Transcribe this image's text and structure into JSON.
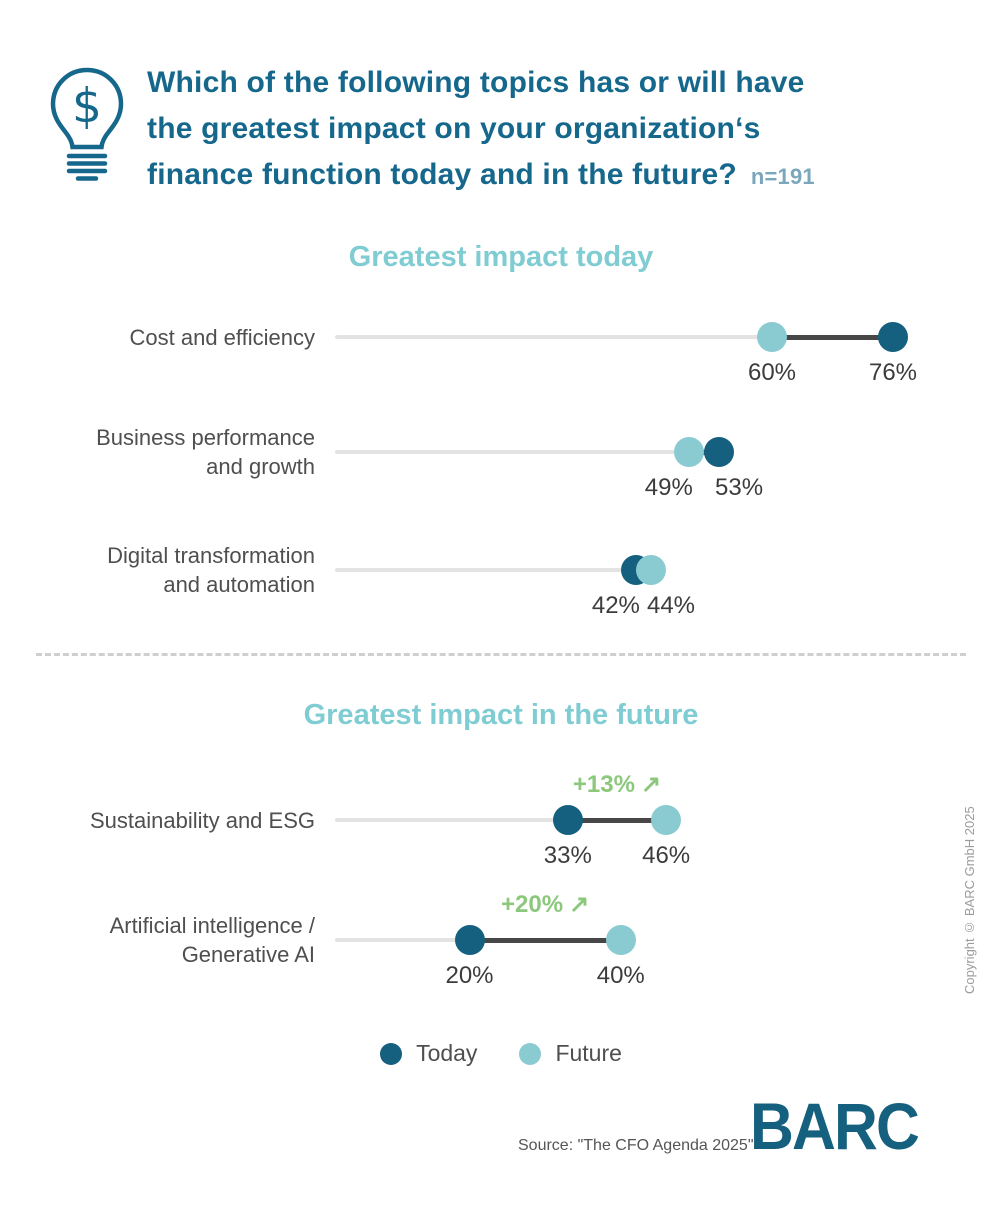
{
  "header": {
    "title_lines": [
      "Which of the following topics has or will have",
      "the greatest impact on your organization‘s",
      "finance function today and in the future?"
    ],
    "n_label": "n=191"
  },
  "chart_data": [
    {
      "type": "dumbbell",
      "title": "Greatest impact today",
      "axis_range": [
        0,
        90
      ],
      "unit": "%",
      "rows": [
        {
          "label_lines": [
            "Cost and efficiency"
          ],
          "today": 76,
          "future": 60
        },
        {
          "label_lines": [
            "Business performance",
            "and growth"
          ],
          "today": 53,
          "future": 49
        },
        {
          "label_lines": [
            "Digital transformation",
            "and automation"
          ],
          "today": 42,
          "future": 44
        }
      ]
    },
    {
      "type": "dumbbell",
      "title": "Greatest impact in the future",
      "axis_range": [
        0,
        90
      ],
      "unit": "%",
      "rows": [
        {
          "label_lines": [
            "Sustainability and ESG"
          ],
          "today": 33,
          "future": 46,
          "delta": "+13%"
        },
        {
          "label_lines": [
            "Artificial intelligence /",
            "Generative AI"
          ],
          "today": 20,
          "future": 40,
          "delta": "+20%"
        }
      ]
    }
  ],
  "legend": {
    "items": [
      {
        "key": "today",
        "label": "Today"
      },
      {
        "key": "future",
        "label": "Future"
      }
    ]
  },
  "icons": {
    "increase_arrow": "↗",
    "bulb_glyph": "$"
  },
  "footer": {
    "source": "Source: \"The CFO Agenda 2025\"",
    "logo_text": "BARC",
    "copyright": "Copyright © BARC GmbH 2025"
  },
  "colors": {
    "today": "#15607E",
    "future": "#8ACBD2",
    "heading": "#7FCCD3",
    "title": "#16678C",
    "n": "#7BA7BD",
    "green": "#8CC87C",
    "label": "#4F4F4F",
    "value": "#3C3C3C",
    "track": "#E3E3E3",
    "connector": "#474747",
    "divider": "#CFCFCF",
    "source": "#555555",
    "copyright": "#9C9C9C",
    "logo": "#15607E"
  }
}
